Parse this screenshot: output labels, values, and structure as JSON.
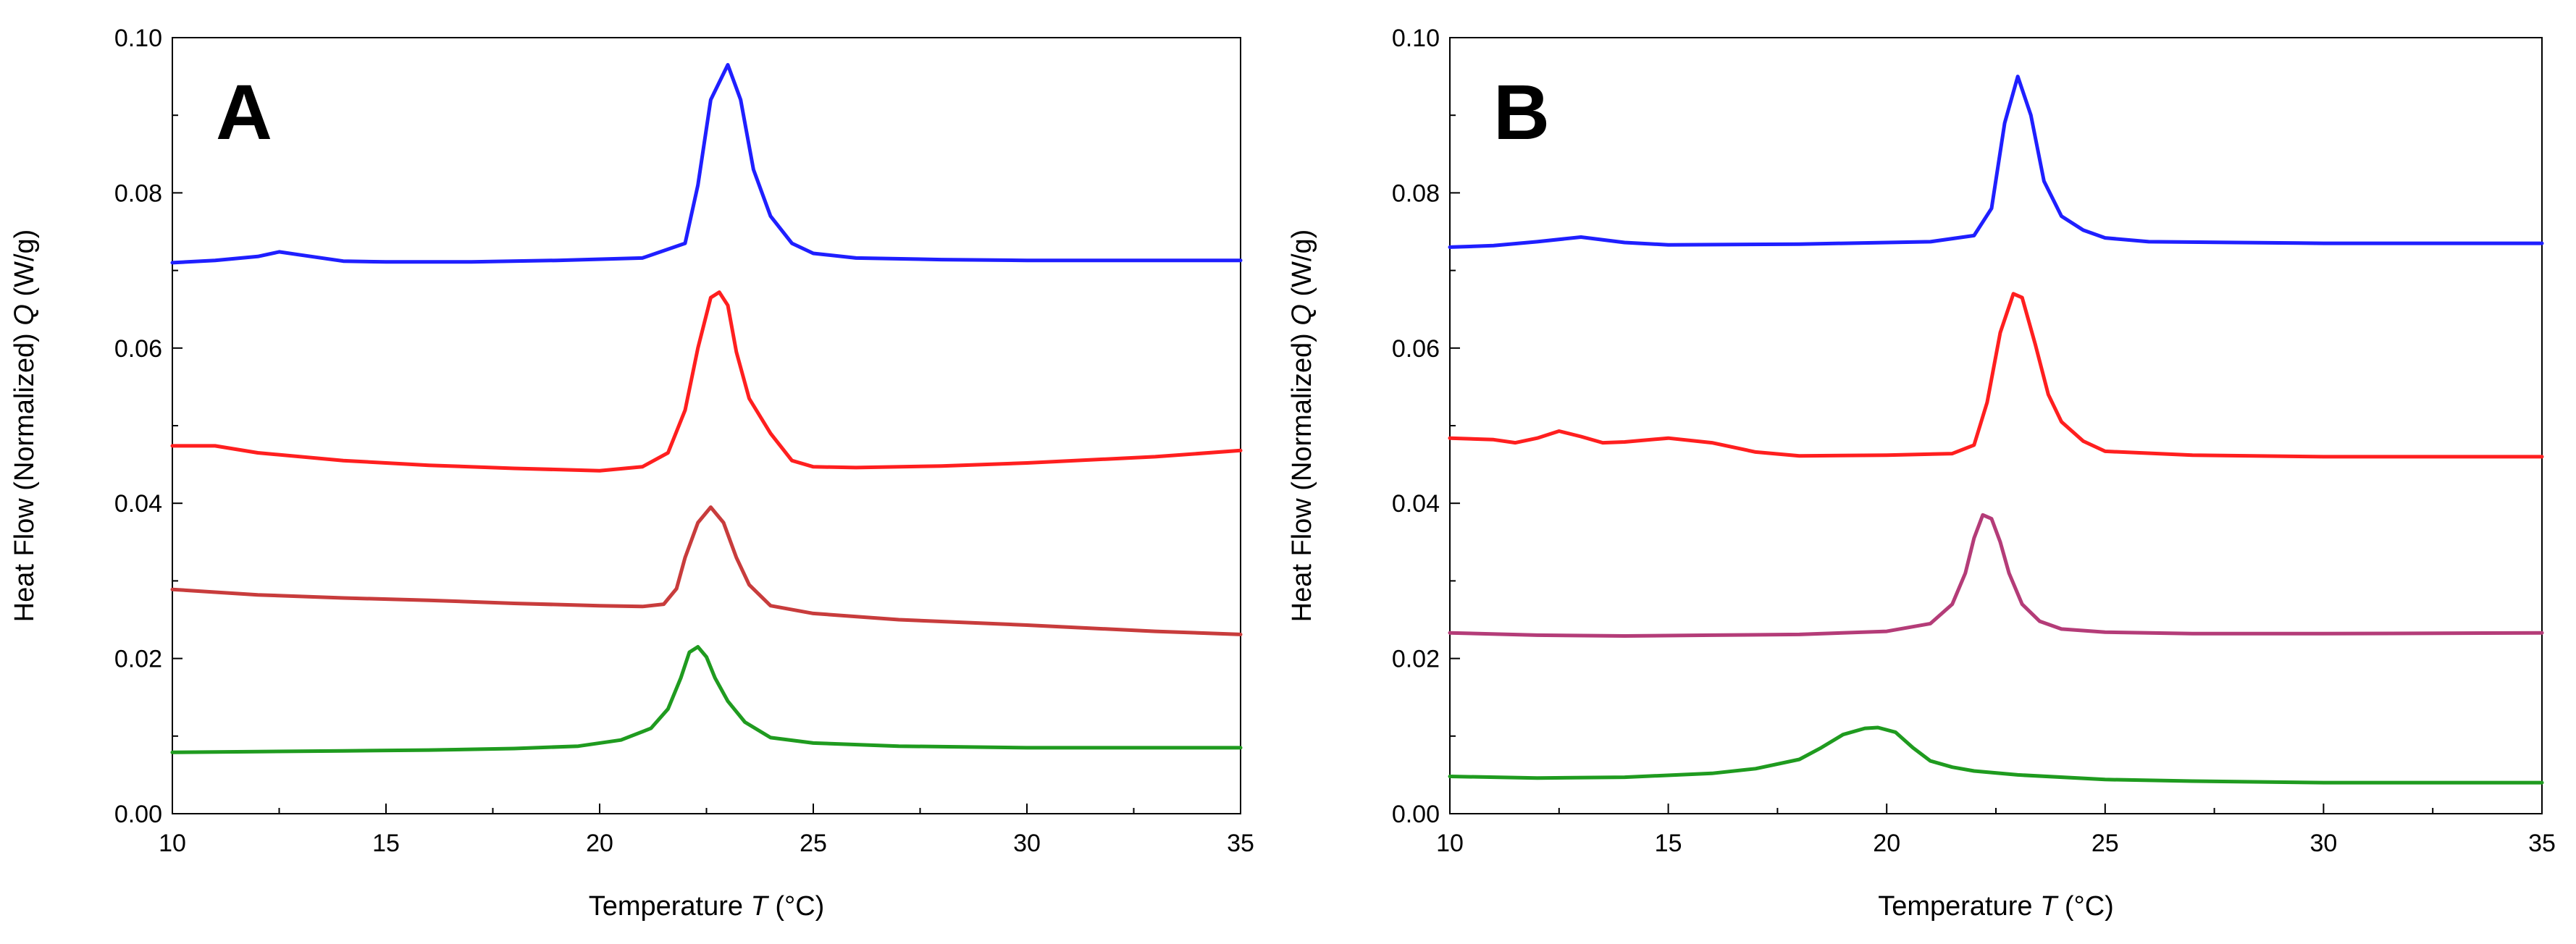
{
  "chart_data": [
    {
      "type": "line",
      "panel_label": "A",
      "xlabel": "Temperature",
      "xlabel_symbol": "T",
      "xlabel_unit": "(°C)",
      "ylabel": "Heat Flow (Normalized)",
      "ylabel_symbol": "Q",
      "ylabel_unit": "(W/g)",
      "xlim": [
        10,
        35
      ],
      "ylim": [
        0.0,
        0.1
      ],
      "xticks": [
        10,
        15,
        20,
        25,
        30,
        35
      ],
      "xtick_labels": [
        "10",
        "15",
        "20",
        "25",
        "30",
        "35"
      ],
      "yticks": [
        0.0,
        0.02,
        0.04,
        0.06,
        0.08,
        0.1
      ],
      "ytick_labels": [
        "0.00",
        "0.02",
        "0.04",
        "0.06",
        "0.08",
        "0.10"
      ],
      "grid": false,
      "legend": "none",
      "series": [
        {
          "color": "#1f1fff",
          "x": [
            10,
            11,
            12,
            12.5,
            13,
            14,
            15,
            17,
            19,
            21,
            22,
            22.3,
            22.6,
            23,
            23.3,
            23.6,
            24,
            24.5,
            25,
            26,
            28,
            30,
            35
          ],
          "y": [
            0.071,
            0.0713,
            0.0718,
            0.0724,
            0.072,
            0.0712,
            0.0711,
            0.0711,
            0.0713,
            0.0716,
            0.0735,
            0.081,
            0.092,
            0.0965,
            0.092,
            0.083,
            0.077,
            0.0735,
            0.0722,
            0.0716,
            0.0714,
            0.0713,
            0.0713
          ]
        },
        {
          "color": "#ff1f1f",
          "x": [
            10,
            11,
            12,
            14,
            16,
            18,
            20,
            21,
            21.6,
            22,
            22.3,
            22.6,
            22.8,
            23,
            23.2,
            23.5,
            24,
            24.5,
            25,
            26,
            28,
            30,
            33,
            35
          ],
          "y": [
            0.0474,
            0.0474,
            0.0465,
            0.0455,
            0.0449,
            0.0445,
            0.0442,
            0.0447,
            0.0465,
            0.052,
            0.06,
            0.0665,
            0.0672,
            0.0655,
            0.0595,
            0.0535,
            0.049,
            0.0455,
            0.0447,
            0.0446,
            0.0448,
            0.0452,
            0.046,
            0.0468
          ]
        },
        {
          "color": "#c83c3c",
          "x": [
            10,
            12,
            14,
            16,
            18,
            20,
            21,
            21.5,
            21.8,
            22,
            22.3,
            22.6,
            22.9,
            23.2,
            23.5,
            24,
            25,
            27,
            30,
            33,
            35
          ],
          "y": [
            0.0289,
            0.0282,
            0.0278,
            0.0275,
            0.0271,
            0.0268,
            0.0267,
            0.027,
            0.029,
            0.033,
            0.0375,
            0.0395,
            0.0375,
            0.033,
            0.0295,
            0.0268,
            0.0258,
            0.025,
            0.0243,
            0.0235,
            0.0231
          ]
        },
        {
          "color": "#1f9b1f",
          "x": [
            10,
            12,
            14,
            16,
            18,
            19.5,
            20.5,
            21.2,
            21.6,
            21.9,
            22.1,
            22.3,
            22.5,
            22.7,
            23,
            23.4,
            24,
            25,
            27,
            30,
            35
          ],
          "y": [
            0.0079,
            0.008,
            0.0081,
            0.0082,
            0.0084,
            0.0087,
            0.0095,
            0.011,
            0.0135,
            0.0175,
            0.0208,
            0.0215,
            0.0202,
            0.0175,
            0.0145,
            0.0118,
            0.0098,
            0.0091,
            0.0087,
            0.0085,
            0.0085
          ]
        }
      ]
    },
    {
      "type": "line",
      "panel_label": "B",
      "xlabel": "Temperature",
      "xlabel_symbol": "T",
      "xlabel_unit": "(°C)",
      "ylabel": "Heat Flow (Normalized)",
      "ylabel_symbol": "Q",
      "ylabel_unit": "(W/g)",
      "xlim": [
        10,
        35
      ],
      "ylim": [
        0.0,
        0.1
      ],
      "xticks": [
        10,
        15,
        20,
        25,
        30,
        35
      ],
      "xtick_labels": [
        "10",
        "15",
        "20",
        "25",
        "30",
        "35"
      ],
      "yticks": [
        0.0,
        0.02,
        0.04,
        0.06,
        0.08,
        0.1
      ],
      "ytick_labels": [
        "0.00",
        "0.02",
        "0.04",
        "0.06",
        "0.08",
        "0.10"
      ],
      "grid": false,
      "legend": "none",
      "series": [
        {
          "color": "#1f1fff",
          "x": [
            10,
            11,
            12,
            13,
            14,
            15,
            18,
            21,
            22,
            22.4,
            22.7,
            23,
            23.3,
            23.6,
            24,
            24.5,
            25,
            26,
            28,
            30,
            35
          ],
          "y": [
            0.073,
            0.0732,
            0.0737,
            0.0743,
            0.0736,
            0.0733,
            0.0734,
            0.0737,
            0.0745,
            0.078,
            0.089,
            0.095,
            0.09,
            0.0815,
            0.077,
            0.0752,
            0.0742,
            0.0737,
            0.0736,
            0.0735,
            0.0735
          ]
        },
        {
          "color": "#ff1f1f",
          "x": [
            10,
            11,
            11.5,
            12,
            12.5,
            13,
            13.5,
            14,
            15,
            16,
            17,
            18,
            20,
            21.5,
            22,
            22.3,
            22.6,
            22.9,
            23.1,
            23.4,
            23.7,
            24,
            24.5,
            25,
            27,
            30,
            35
          ],
          "y": [
            0.0484,
            0.0482,
            0.0478,
            0.0484,
            0.0493,
            0.0486,
            0.0478,
            0.0479,
            0.0484,
            0.0478,
            0.0466,
            0.0461,
            0.0462,
            0.0464,
            0.0475,
            0.053,
            0.062,
            0.067,
            0.0665,
            0.0605,
            0.054,
            0.0505,
            0.048,
            0.0467,
            0.0462,
            0.046,
            0.046
          ]
        },
        {
          "color": "#b43c78",
          "x": [
            10,
            12,
            14,
            16,
            18,
            20,
            21,
            21.5,
            21.8,
            22,
            22.2,
            22.4,
            22.6,
            22.8,
            23.1,
            23.5,
            24,
            25,
            27,
            30,
            35
          ],
          "y": [
            0.0233,
            0.023,
            0.0229,
            0.023,
            0.0231,
            0.0235,
            0.0245,
            0.027,
            0.031,
            0.0355,
            0.0385,
            0.038,
            0.035,
            0.031,
            0.027,
            0.0248,
            0.0238,
            0.0234,
            0.0232,
            0.0232,
            0.0233
          ]
        },
        {
          "color": "#1f9b1f",
          "x": [
            10,
            12,
            14,
            16,
            17,
            18,
            18.5,
            19,
            19.5,
            19.8,
            20.2,
            20.6,
            21,
            21.5,
            22,
            23,
            25,
            27,
            30,
            35
          ],
          "y": [
            0.0048,
            0.0046,
            0.0047,
            0.0052,
            0.0058,
            0.007,
            0.0085,
            0.0102,
            0.011,
            0.0111,
            0.0105,
            0.0085,
            0.0068,
            0.006,
            0.0055,
            0.005,
            0.0044,
            0.0042,
            0.004,
            0.004
          ]
        }
      ]
    }
  ]
}
